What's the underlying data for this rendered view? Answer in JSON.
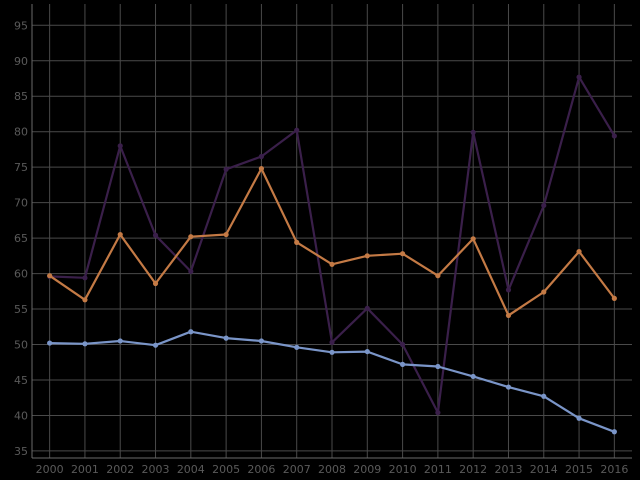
{
  "chart_data": {
    "type": "line",
    "title": "",
    "xlabel": "",
    "ylabel": "",
    "x": [
      "2000",
      "2001",
      "2002",
      "2003",
      "2004",
      "2005",
      "2006",
      "2007",
      "2008",
      "2009",
      "2010",
      "2011",
      "2012",
      "2013",
      "2014",
      "2015",
      "2016"
    ],
    "ylim": [
      34,
      98
    ],
    "yticks": [
      35,
      40,
      45,
      50,
      55,
      60,
      65,
      70,
      75,
      80,
      85,
      90,
      95
    ],
    "grid": true,
    "legend": "none",
    "series": [
      {
        "color": "#3a1f4a",
        "values": [
          59.6,
          59.4,
          78.0,
          65.4,
          60.3,
          74.7,
          76.5,
          80.2,
          50.3,
          55.1,
          50.0,
          40.4,
          79.9,
          57.7,
          69.6,
          87.7,
          79.4
        ]
      },
      {
        "color": "#c47a45",
        "values": [
          59.7,
          56.3,
          65.5,
          58.6,
          65.2,
          65.5,
          74.8,
          64.4,
          61.3,
          62.5,
          62.8,
          59.7,
          64.9,
          54.1,
          57.4,
          63.1,
          56.5
        ]
      },
      {
        "color": "#7a95c8",
        "values": [
          50.2,
          50.1,
          50.5,
          49.9,
          51.8,
          50.9,
          50.5,
          49.6,
          48.9,
          49.0,
          47.2,
          46.9,
          45.5,
          44.0,
          42.7,
          39.6,
          37.7
        ]
      }
    ]
  }
}
